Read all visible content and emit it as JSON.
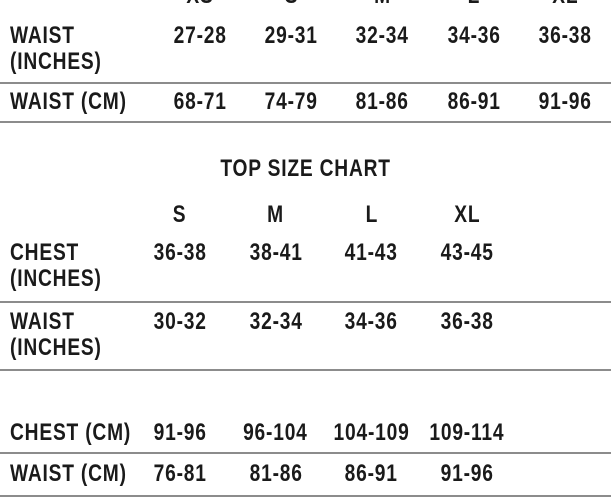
{
  "theme": {
    "background": "#ffffff",
    "text_color": "#1a1a1a",
    "divider_color": "#8c8c8c"
  },
  "bottom_size_chart": {
    "columns": [
      "XS",
      "S",
      "M",
      "L",
      "XL"
    ],
    "rows": [
      {
        "label_lines": [
          "WAIST",
          "(INCHES)"
        ],
        "values": [
          "27-28",
          "29-31",
          "32-34",
          "34-36",
          "36-38"
        ]
      },
      {
        "label_lines": [
          "WAIST (CM)"
        ],
        "values": [
          "68-71",
          "74-79",
          "81-86",
          "86-91",
          "91-96"
        ]
      }
    ]
  },
  "top_size_chart": {
    "title": "TOP SIZE CHART",
    "columns": [
      "S",
      "M",
      "L",
      "XL"
    ],
    "rows_inches": [
      {
        "label_lines": [
          "CHEST",
          "(INCHES)"
        ],
        "values": [
          "36-38",
          "38-41",
          "41-43",
          "43-45"
        ]
      },
      {
        "label_lines": [
          "WAIST",
          "(INCHES)"
        ],
        "values": [
          "30-32",
          "32-34",
          "34-36",
          "36-38"
        ]
      }
    ],
    "rows_cm": [
      {
        "label_lines": [
          "CHEST (CM)"
        ],
        "values": [
          "91-96",
          "96-104",
          "104-109",
          "109-114"
        ]
      },
      {
        "label_lines": [
          "WAIST (CM)"
        ],
        "values": [
          "76-81",
          "81-86",
          "86-91",
          "91-96"
        ]
      }
    ]
  }
}
